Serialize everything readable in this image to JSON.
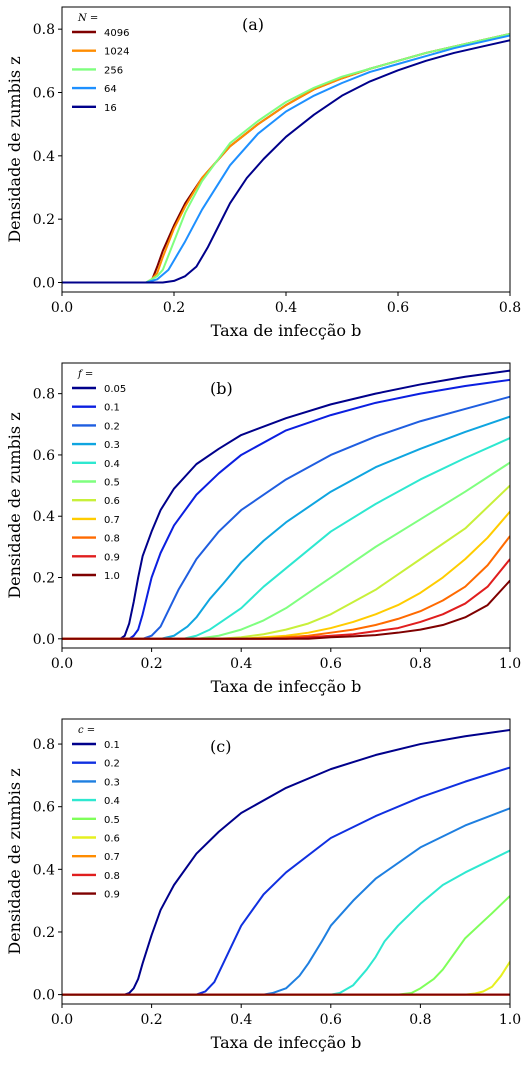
{
  "chart_data": [
    {
      "type": "line",
      "panel_label": "(a)",
      "xlabel": "Taxa de infecção b",
      "ylabel": "Densidade de zumbis z",
      "xlim": [
        0.0,
        0.8
      ],
      "ylim": [
        -0.03,
        0.87
      ],
      "xticks": [
        "0.0",
        "0.2",
        "0.4",
        "0.6",
        "0.8"
      ],
      "yticks": [
        "0.0",
        "0.2",
        "0.4",
        "0.6",
        "0.8"
      ],
      "grid": false,
      "legend_title": "N =",
      "legend_position": "top-left",
      "series": [
        {
          "name": "4096",
          "color": "#7f0000",
          "x": [
            0,
            0.15,
            0.16,
            0.17,
            0.18,
            0.2,
            0.22,
            0.25,
            0.3,
            0.35,
            0.4,
            0.45,
            0.5,
            0.55,
            0.6,
            0.65,
            0.7,
            0.75,
            0.8
          ],
          "y": [
            0,
            0,
            0.005,
            0.05,
            0.1,
            0.18,
            0.25,
            0.33,
            0.43,
            0.5,
            0.56,
            0.61,
            0.645,
            0.675,
            0.7,
            0.725,
            0.745,
            0.765,
            0.785
          ]
        },
        {
          "name": "1024",
          "color": "#ff8c00",
          "x": [
            0,
            0.15,
            0.16,
            0.17,
            0.18,
            0.2,
            0.22,
            0.25,
            0.3,
            0.35,
            0.4,
            0.45,
            0.5,
            0.55,
            0.6,
            0.65,
            0.7,
            0.75,
            0.8
          ],
          "y": [
            0,
            0,
            0.01,
            0.03,
            0.08,
            0.17,
            0.24,
            0.33,
            0.43,
            0.5,
            0.56,
            0.61,
            0.645,
            0.675,
            0.7,
            0.725,
            0.745,
            0.765,
            0.785
          ]
        },
        {
          "name": "256",
          "color": "#7fff7f",
          "x": [
            0,
            0.15,
            0.17,
            0.18,
            0.2,
            0.22,
            0.25,
            0.3,
            0.35,
            0.4,
            0.45,
            0.5,
            0.55,
            0.6,
            0.65,
            0.7,
            0.75,
            0.8
          ],
          "y": [
            0,
            0,
            0.02,
            0.04,
            0.13,
            0.22,
            0.32,
            0.44,
            0.51,
            0.57,
            0.615,
            0.65,
            0.675,
            0.7,
            0.725,
            0.745,
            0.765,
            0.785
          ]
        },
        {
          "name": "64",
          "color": "#1e90ff",
          "x": [
            0,
            0.15,
            0.17,
            0.19,
            0.2,
            0.22,
            0.25,
            0.3,
            0.35,
            0.4,
            0.45,
            0.5,
            0.55,
            0.6,
            0.65,
            0.7,
            0.75,
            0.8
          ],
          "y": [
            0,
            0,
            0.01,
            0.04,
            0.07,
            0.13,
            0.23,
            0.37,
            0.47,
            0.54,
            0.59,
            0.63,
            0.665,
            0.69,
            0.715,
            0.74,
            0.76,
            0.78
          ]
        },
        {
          "name": "16",
          "color": "#00008b",
          "x": [
            0,
            0.18,
            0.2,
            0.22,
            0.24,
            0.26,
            0.28,
            0.3,
            0.33,
            0.36,
            0.4,
            0.45,
            0.5,
            0.55,
            0.6,
            0.65,
            0.7,
            0.75,
            0.8
          ],
          "y": [
            0,
            0,
            0.005,
            0.02,
            0.05,
            0.11,
            0.18,
            0.25,
            0.33,
            0.39,
            0.46,
            0.53,
            0.59,
            0.635,
            0.67,
            0.7,
            0.725,
            0.745,
            0.765
          ]
        }
      ]
    },
    {
      "type": "line",
      "panel_label": "(b)",
      "xlabel": "Taxa de infecção b",
      "ylabel": "Densidade de zumbis z",
      "xlim": [
        0.0,
        1.0
      ],
      "ylim": [
        -0.03,
        0.9
      ],
      "xticks": [
        "0.0",
        "0.2",
        "0.4",
        "0.6",
        "0.8",
        "1.0"
      ],
      "yticks": [
        "0.0",
        "0.2",
        "0.4",
        "0.6",
        "0.8"
      ],
      "grid": false,
      "legend_title": "f =",
      "legend_position": "top-left",
      "series": [
        {
          "name": "0.05",
          "color": "#00008b",
          "x": [
            0,
            0.13,
            0.14,
            0.15,
            0.16,
            0.17,
            0.18,
            0.2,
            0.22,
            0.25,
            0.3,
            0.35,
            0.4,
            0.5,
            0.6,
            0.7,
            0.8,
            0.9,
            1.0
          ],
          "y": [
            0,
            0,
            0.01,
            0.05,
            0.12,
            0.2,
            0.27,
            0.35,
            0.42,
            0.49,
            0.57,
            0.62,
            0.665,
            0.72,
            0.765,
            0.8,
            0.83,
            0.855,
            0.875
          ]
        },
        {
          "name": "0.1",
          "color": "#0b1fe0",
          "x": [
            0,
            0.15,
            0.16,
            0.17,
            0.18,
            0.19,
            0.2,
            0.22,
            0.25,
            0.3,
            0.35,
            0.4,
            0.5,
            0.6,
            0.7,
            0.8,
            0.9,
            1.0
          ],
          "y": [
            0,
            0,
            0.01,
            0.03,
            0.08,
            0.14,
            0.2,
            0.28,
            0.37,
            0.47,
            0.54,
            0.6,
            0.68,
            0.73,
            0.77,
            0.8,
            0.825,
            0.845
          ]
        },
        {
          "name": "0.2",
          "color": "#1f5ee0",
          "x": [
            0,
            0.18,
            0.2,
            0.22,
            0.24,
            0.26,
            0.28,
            0.3,
            0.35,
            0.4,
            0.5,
            0.6,
            0.7,
            0.8,
            0.9,
            1.0
          ],
          "y": [
            0,
            0,
            0.01,
            0.04,
            0.1,
            0.16,
            0.21,
            0.26,
            0.35,
            0.42,
            0.52,
            0.6,
            0.66,
            0.71,
            0.75,
            0.79
          ]
        },
        {
          "name": "0.3",
          "color": "#0fa5e0",
          "x": [
            0,
            0.22,
            0.25,
            0.28,
            0.3,
            0.33,
            0.36,
            0.4,
            0.45,
            0.5,
            0.6,
            0.7,
            0.8,
            0.9,
            1.0
          ],
          "y": [
            0,
            0,
            0.01,
            0.04,
            0.07,
            0.13,
            0.18,
            0.25,
            0.32,
            0.38,
            0.48,
            0.56,
            0.62,
            0.675,
            0.725
          ]
        },
        {
          "name": "0.4",
          "color": "#2ee8d0",
          "x": [
            0,
            0.27,
            0.3,
            0.33,
            0.36,
            0.4,
            0.45,
            0.5,
            0.55,
            0.6,
            0.7,
            0.8,
            0.9,
            1.0
          ],
          "y": [
            0,
            0,
            0.01,
            0.03,
            0.06,
            0.1,
            0.17,
            0.23,
            0.29,
            0.35,
            0.44,
            0.52,
            0.59,
            0.655
          ]
        },
        {
          "name": "0.5",
          "color": "#7fff7f",
          "x": [
            0,
            0.3,
            0.35,
            0.4,
            0.45,
            0.5,
            0.55,
            0.6,
            0.65,
            0.7,
            0.8,
            0.9,
            1.0
          ],
          "y": [
            0,
            0,
            0.01,
            0.03,
            0.06,
            0.1,
            0.15,
            0.2,
            0.25,
            0.3,
            0.39,
            0.48,
            0.575
          ]
        },
        {
          "name": "0.6",
          "color": "#c8f03a",
          "x": [
            0,
            0.35,
            0.4,
            0.45,
            0.5,
            0.55,
            0.6,
            0.65,
            0.7,
            0.75,
            0.8,
            0.9,
            1.0
          ],
          "y": [
            0,
            0,
            0.005,
            0.015,
            0.03,
            0.05,
            0.08,
            0.12,
            0.16,
            0.21,
            0.26,
            0.36,
            0.5
          ]
        },
        {
          "name": "0.7",
          "color": "#ffcc00",
          "x": [
            0,
            0.4,
            0.45,
            0.5,
            0.55,
            0.6,
            0.65,
            0.7,
            0.75,
            0.8,
            0.85,
            0.9,
            0.95,
            1.0
          ],
          "y": [
            0,
            0,
            0.005,
            0.01,
            0.02,
            0.035,
            0.055,
            0.08,
            0.11,
            0.15,
            0.2,
            0.26,
            0.33,
            0.415
          ]
        },
        {
          "name": "0.8",
          "color": "#ff6a00",
          "x": [
            0,
            0.45,
            0.5,
            0.55,
            0.6,
            0.65,
            0.7,
            0.75,
            0.8,
            0.85,
            0.9,
            0.95,
            1.0
          ],
          "y": [
            0,
            0,
            0.005,
            0.01,
            0.02,
            0.03,
            0.045,
            0.065,
            0.09,
            0.125,
            0.17,
            0.24,
            0.335
          ]
        },
        {
          "name": "0.9",
          "color": "#e01e1e",
          "x": [
            0,
            0.5,
            0.55,
            0.6,
            0.65,
            0.7,
            0.75,
            0.8,
            0.85,
            0.9,
            0.95,
            1.0
          ],
          "y": [
            0,
            0,
            0.005,
            0.01,
            0.015,
            0.025,
            0.035,
            0.055,
            0.08,
            0.115,
            0.17,
            0.26
          ]
        },
        {
          "name": "1.0",
          "color": "#7f0000",
          "x": [
            0,
            0.55,
            0.6,
            0.65,
            0.7,
            0.75,
            0.8,
            0.85,
            0.9,
            0.95,
            1.0
          ],
          "y": [
            0,
            0,
            0.005,
            0.008,
            0.012,
            0.02,
            0.03,
            0.045,
            0.07,
            0.11,
            0.19
          ]
        }
      ]
    },
    {
      "type": "line",
      "panel_label": "(c)",
      "xlabel": "Taxa de infecção b",
      "ylabel": "Densidade de zumbis z",
      "xlim": [
        0.0,
        1.0
      ],
      "ylim": [
        -0.03,
        0.88
      ],
      "xticks": [
        "0.0",
        "0.2",
        "0.4",
        "0.6",
        "0.8",
        "1.0"
      ],
      "yticks": [
        "0.0",
        "0.2",
        "0.4",
        "0.6",
        "0.8"
      ],
      "grid": false,
      "legend_title": "c =",
      "legend_position": "top-left",
      "series": [
        {
          "name": "0.1",
          "color": "#00008b",
          "x": [
            0,
            0.14,
            0.15,
            0.16,
            0.17,
            0.18,
            0.2,
            0.22,
            0.25,
            0.3,
            0.35,
            0.4,
            0.5,
            0.6,
            0.7,
            0.8,
            0.9,
            1.0
          ],
          "y": [
            0,
            0,
            0.005,
            0.02,
            0.05,
            0.1,
            0.19,
            0.27,
            0.35,
            0.45,
            0.52,
            0.58,
            0.66,
            0.72,
            0.765,
            0.8,
            0.825,
            0.845
          ]
        },
        {
          "name": "0.2",
          "color": "#1030e0",
          "x": [
            0,
            0.3,
            0.32,
            0.34,
            0.36,
            0.38,
            0.4,
            0.45,
            0.5,
            0.6,
            0.7,
            0.8,
            0.9,
            1.0
          ],
          "y": [
            0,
            0,
            0.01,
            0.04,
            0.1,
            0.16,
            0.22,
            0.32,
            0.39,
            0.5,
            0.57,
            0.63,
            0.68,
            0.725
          ]
        },
        {
          "name": "0.3",
          "color": "#1e7fe0",
          "x": [
            0,
            0.45,
            0.47,
            0.5,
            0.53,
            0.55,
            0.58,
            0.6,
            0.65,
            0.7,
            0.8,
            0.9,
            1.0
          ],
          "y": [
            0,
            0,
            0.005,
            0.02,
            0.06,
            0.1,
            0.17,
            0.22,
            0.3,
            0.37,
            0.47,
            0.54,
            0.595
          ]
        },
        {
          "name": "0.4",
          "color": "#2ee8d0",
          "x": [
            0,
            0.6,
            0.62,
            0.65,
            0.68,
            0.7,
            0.72,
            0.75,
            0.8,
            0.85,
            0.9,
            1.0
          ],
          "y": [
            0,
            0,
            0.005,
            0.03,
            0.08,
            0.12,
            0.17,
            0.22,
            0.29,
            0.35,
            0.39,
            0.46
          ]
        },
        {
          "name": "0.5",
          "color": "#7fff5a",
          "x": [
            0,
            0.75,
            0.78,
            0.8,
            0.83,
            0.85,
            0.88,
            0.9,
            0.93,
            0.96,
            1.0
          ],
          "y": [
            0,
            0,
            0.005,
            0.02,
            0.05,
            0.08,
            0.14,
            0.18,
            0.22,
            0.26,
            0.315
          ]
        },
        {
          "name": "0.6",
          "color": "#e6f020",
          "x": [
            0,
            0.9,
            0.92,
            0.94,
            0.96,
            0.98,
            1.0
          ],
          "y": [
            0,
            0,
            0.003,
            0.01,
            0.025,
            0.06,
            0.105
          ]
        },
        {
          "name": "0.7",
          "color": "#ff8c00",
          "x": [
            0,
            1.0
          ],
          "y": [
            0,
            0
          ]
        },
        {
          "name": "0.8",
          "color": "#e01e1e",
          "x": [
            0,
            1.0
          ],
          "y": [
            0,
            0
          ]
        },
        {
          "name": "0.9",
          "color": "#7f0000",
          "x": [
            0,
            1.0
          ],
          "y": [
            0,
            0
          ]
        }
      ]
    }
  ]
}
